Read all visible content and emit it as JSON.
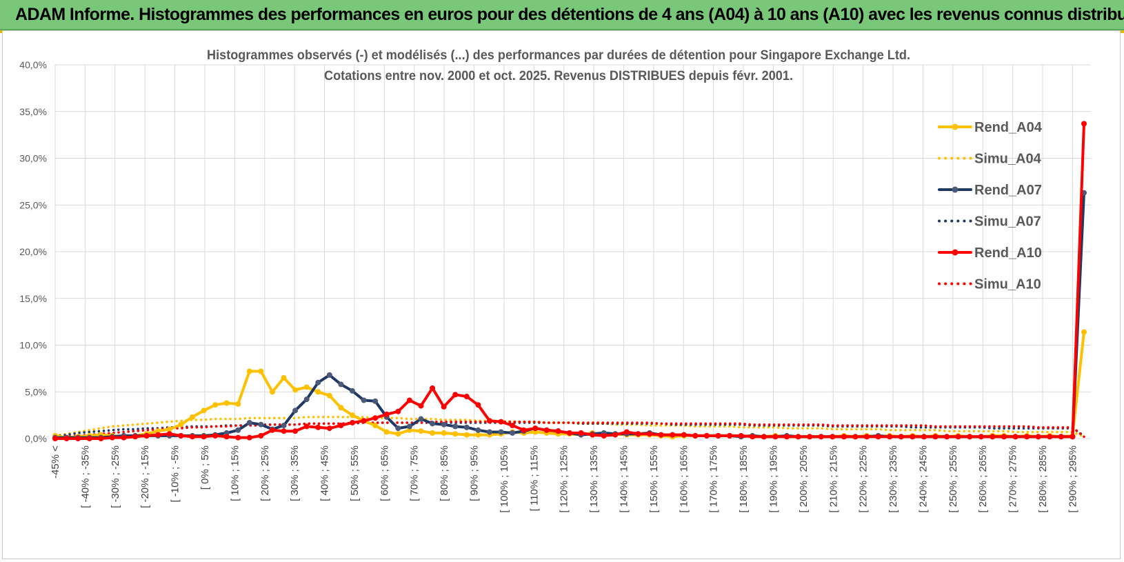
{
  "banner": {
    "title": "ADAM Informe. Histogrammes des performances en euros pour des détentions de 4 ans (A04) à 10 ans (A10) avec les revenus connus distribués"
  },
  "colors": {
    "banner_bg": "#79c879",
    "Rend_A04": "#ffc000",
    "Simu_A04": "#ffc000",
    "Rend_A07": "#1f3864",
    "Simu_A07": "#1f3864",
    "Rend_A10": "#ff0000",
    "Simu_A10": "#ff0000",
    "grid": "#d9d9d9"
  },
  "chart_data": {
    "type": "line",
    "title": [
      "Histogrammes observés (-) et modélisés (...) des performances par durées de détention pour Singapore Exchange Ltd.",
      "Cotations entre nov. 2000 et oct. 2025. Revenus DISTRIBUES depuis févr. 2001."
    ],
    "xlabel": "",
    "ylabel": "",
    "ylim": [
      0,
      40
    ],
    "y_ticks": [
      "0,0%",
      "5,0%",
      "10,0%",
      "15,0%",
      "20,0%",
      "25,0%",
      "30,0%",
      "35,0%",
      "40,0%"
    ],
    "grid": true,
    "legend_position": "right",
    "x_labels_visible": [
      "-45% <",
      "[ -40% ; -35%",
      "[ -30% ; -25%",
      "[ -20% ; -15%",
      "[ -10% ; -5%",
      "[ 0% ; 5%",
      "[ 10% ; 15%",
      "[ 20% ; 25%",
      "[ 30% ; 35%",
      "[ 40% ; 45%",
      "[ 50% ; 55%",
      "[ 60% ; 65%",
      "[ 70% ; 75%",
      "[ 80% ; 85%",
      "[ 90% ; 95%",
      "[ 100% ; 105%",
      "[ 110% ; 115%",
      "[ 120% ; 125%",
      "[ 130% ; 135%",
      "[ 140% ; 145%",
      "[ 150% ; 155%",
      "[ 160% ; 165%",
      "[ 170% ; 175%",
      "[ 180% ; 185%",
      "[ 190% ; 195%",
      "[ 200% ; 205%",
      "[ 210% ; 215%",
      "[ 220% ; 225%",
      "[ 230% ; 235%",
      "[ 240% ; 245%",
      "[ 250% ; 255%",
      "[ 260% ; 265%",
      "[ 270% ; 275%",
      "[ 280% ; 285%",
      "[ 290% ; 295%"
    ],
    "series": [
      {
        "name": "Rend_A04",
        "style": "solid",
        "markers": true,
        "values": [
          0.3,
          0.1,
          0.2,
          0.3,
          0.4,
          0.3,
          0.2,
          0.3,
          0.5,
          0.8,
          1.0,
          1.5,
          2.3,
          3.0,
          3.6,
          3.8,
          3.7,
          7.2,
          7.2,
          5.0,
          6.5,
          5.2,
          5.5,
          5.0,
          4.6,
          3.3,
          2.5,
          1.9,
          1.4,
          0.7,
          0.5,
          0.9,
          0.8,
          0.6,
          0.6,
          0.5,
          0.4,
          0.4,
          0.4,
          0.5,
          0.7,
          0.6,
          0.7,
          0.6,
          0.5,
          0.5,
          0.4,
          0.6,
          0.4,
          0.5,
          0.4,
          0.4,
          0.4,
          0.3,
          0.2,
          0.3,
          0.3,
          0.3,
          0.3,
          0.3,
          0.2,
          0.3,
          0.2,
          0.3,
          0.2,
          0.2,
          0.2,
          0.2,
          0.2,
          0.3,
          0.2,
          0.3,
          0.2,
          0.3,
          0.2,
          0.3,
          0.2,
          0.3,
          0.2,
          0.3,
          0.2,
          0.2,
          0.3,
          0.3,
          0.2,
          0.3,
          0.2,
          0.3,
          0.2,
          0.3,
          11.4
        ]
      },
      {
        "name": "Simu_A04",
        "style": "dotted",
        "markers": false,
        "values": [
          0.3,
          0.5,
          0.7,
          0.9,
          1.1,
          1.3,
          1.4,
          1.5,
          1.6,
          1.7,
          1.8,
          1.9,
          2.0,
          2.0,
          2.1,
          2.1,
          2.1,
          2.2,
          2.2,
          2.2,
          2.2,
          2.2,
          2.3,
          2.3,
          2.3,
          2.3,
          2.3,
          2.3,
          2.2,
          2.2,
          2.2,
          2.1,
          2.1,
          2.1,
          2.0,
          2.0,
          2.0,
          1.9,
          1.9,
          1.9,
          1.8,
          1.8,
          1.8,
          1.7,
          1.7,
          1.7,
          1.6,
          1.6,
          1.6,
          1.5,
          1.5,
          1.5,
          1.4,
          1.4,
          1.4,
          1.4,
          1.3,
          1.3,
          1.3,
          1.3,
          1.2,
          1.2,
          1.2,
          1.2,
          1.1,
          1.1,
          1.1,
          1.1,
          1.0,
          1.0,
          1.0,
          1.0,
          1.0,
          0.9,
          0.9,
          0.9,
          0.9,
          0.9,
          0.8,
          0.8,
          0.8,
          0.8,
          0.8,
          0.8,
          0.7,
          0.7,
          0.7,
          0.7,
          0.7,
          0.7,
          0.2
        ]
      },
      {
        "name": "Rend_A07",
        "style": "solid",
        "markers": true,
        "values": [
          0.1,
          0.1,
          0.1,
          0.1,
          0.1,
          0.2,
          0.3,
          0.3,
          0.3,
          0.3,
          0.3,
          0.3,
          0.3,
          0.3,
          0.4,
          0.6,
          0.9,
          1.7,
          1.5,
          1.0,
          1.4,
          3.0,
          4.2,
          6.0,
          6.8,
          5.8,
          5.1,
          4.1,
          4.0,
          2.3,
          1.1,
          1.3,
          2.1,
          1.6,
          1.5,
          1.3,
          1.2,
          0.9,
          0.7,
          0.7,
          0.6,
          0.8,
          1.1,
          0.9,
          0.8,
          0.6,
          0.4,
          0.5,
          0.6,
          0.5,
          0.5,
          0.5,
          0.6,
          0.4,
          0.4,
          0.4,
          0.3,
          0.3,
          0.3,
          0.3,
          0.2,
          0.3,
          0.2,
          0.2,
          0.3,
          0.2,
          0.2,
          0.2,
          0.2,
          0.2,
          0.2,
          0.2,
          0.3,
          0.2,
          0.2,
          0.2,
          0.2,
          0.2,
          0.2,
          0.2,
          0.2,
          0.2,
          0.2,
          0.2,
          0.2,
          0.2,
          0.2,
          0.2,
          0.2,
          0.2,
          26.3
        ]
      },
      {
        "name": "Simu_A07",
        "style": "dotted",
        "markers": false,
        "values": [
          0.2,
          0.4,
          0.6,
          0.7,
          0.8,
          0.9,
          1.0,
          1.0,
          1.1,
          1.1,
          1.2,
          1.2,
          1.3,
          1.3,
          1.3,
          1.4,
          1.4,
          1.4,
          1.5,
          1.5,
          1.5,
          1.5,
          1.6,
          1.6,
          1.6,
          1.6,
          1.6,
          1.7,
          1.7,
          1.7,
          1.7,
          1.7,
          1.7,
          1.7,
          1.7,
          1.7,
          1.7,
          1.7,
          1.7,
          1.7,
          1.7,
          1.7,
          1.7,
          1.7,
          1.7,
          1.7,
          1.6,
          1.6,
          1.6,
          1.6,
          1.6,
          1.6,
          1.6,
          1.6,
          1.5,
          1.5,
          1.5,
          1.5,
          1.5,
          1.5,
          1.5,
          1.4,
          1.4,
          1.4,
          1.4,
          1.4,
          1.4,
          1.4,
          1.3,
          1.3,
          1.3,
          1.3,
          1.3,
          1.3,
          1.3,
          1.2,
          1.2,
          1.2,
          1.2,
          1.2,
          1.2,
          1.2,
          1.1,
          1.1,
          1.1,
          1.1,
          1.1,
          1.1,
          1.1,
          1.1,
          0.3
        ]
      },
      {
        "name": "Rend_A10",
        "style": "solid",
        "markers": true,
        "values": [
          0.0,
          0.0,
          0.0,
          0.0,
          0.0,
          0.1,
          0.1,
          0.2,
          0.3,
          0.4,
          0.5,
          0.3,
          0.2,
          0.2,
          0.3,
          0.2,
          0.1,
          0.1,
          0.3,
          0.9,
          0.8,
          0.8,
          1.3,
          1.2,
          1.1,
          1.4,
          1.7,
          1.9,
          2.2,
          2.6,
          2.9,
          4.1,
          3.5,
          5.4,
          3.4,
          4.7,
          4.5,
          3.6,
          1.9,
          1.8,
          1.4,
          0.9,
          1.1,
          0.9,
          0.8,
          0.6,
          0.6,
          0.4,
          0.3,
          0.4,
          0.7,
          0.5,
          0.5,
          0.4,
          0.4,
          0.4,
          0.3,
          0.3,
          0.3,
          0.3,
          0.3,
          0.2,
          0.2,
          0.2,
          0.2,
          0.2,
          0.2,
          0.2,
          0.2,
          0.2,
          0.2,
          0.2,
          0.2,
          0.2,
          0.2,
          0.2,
          0.2,
          0.2,
          0.2,
          0.2,
          0.2,
          0.2,
          0.2,
          0.2,
          0.2,
          0.2,
          0.2,
          0.2,
          0.2,
          0.2,
          33.7
        ]
      },
      {
        "name": "Simu_A10",
        "style": "dotted",
        "markers": false,
        "values": [
          0.1,
          0.2,
          0.3,
          0.4,
          0.5,
          0.6,
          0.7,
          0.8,
          0.9,
          1.0,
          1.1,
          1.1,
          1.2,
          1.2,
          1.3,
          1.3,
          1.4,
          1.4,
          1.4,
          1.5,
          1.5,
          1.5,
          1.6,
          1.6,
          1.6,
          1.6,
          1.7,
          1.7,
          1.7,
          1.7,
          1.7,
          1.7,
          1.7,
          1.8,
          1.8,
          1.8,
          1.8,
          1.8,
          1.8,
          1.8,
          1.8,
          1.8,
          1.8,
          1.7,
          1.7,
          1.7,
          1.7,
          1.7,
          1.7,
          1.7,
          1.7,
          1.7,
          1.7,
          1.6,
          1.6,
          1.6,
          1.6,
          1.6,
          1.6,
          1.6,
          1.6,
          1.5,
          1.5,
          1.5,
          1.5,
          1.5,
          1.5,
          1.5,
          1.4,
          1.4,
          1.4,
          1.4,
          1.4,
          1.4,
          1.4,
          1.4,
          1.4,
          1.3,
          1.3,
          1.3,
          1.3,
          1.3,
          1.3,
          1.3,
          1.3,
          1.3,
          1.2,
          1.2,
          1.2,
          1.2,
          0.2
        ]
      }
    ]
  }
}
